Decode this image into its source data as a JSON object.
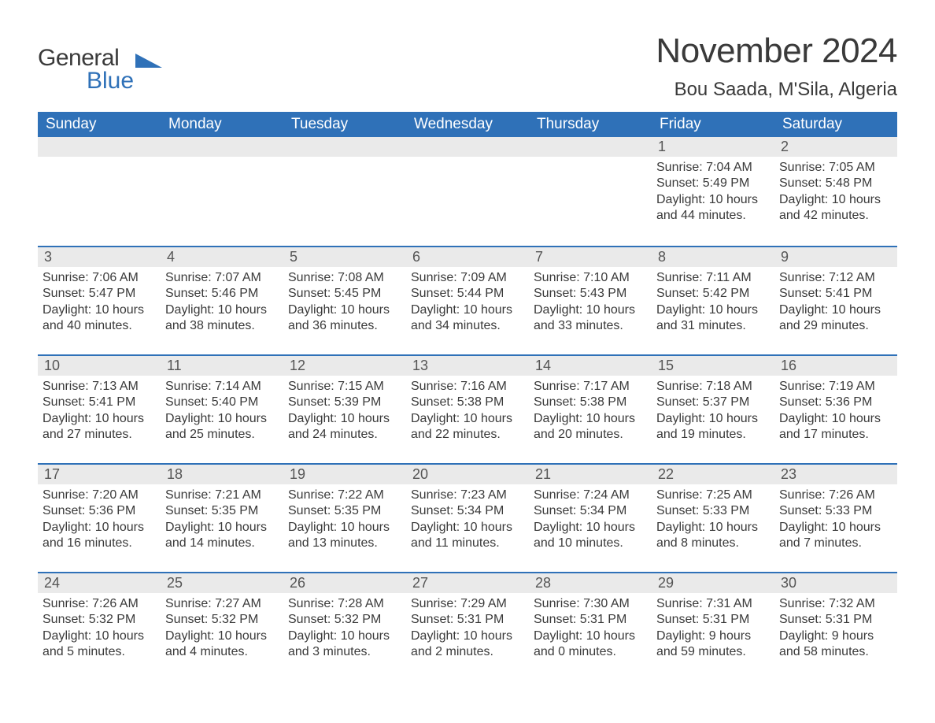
{
  "brand": {
    "word1": "General",
    "word2": "Blue",
    "accent_color": "#2f71b8"
  },
  "header": {
    "month_title": "November 2024",
    "location": "Bou Saada, M'Sila, Algeria"
  },
  "styling": {
    "header_bg": "#2f71b8",
    "header_text": "#ffffff",
    "daynum_bg": "#eaeaea",
    "week_rule_color": "#2f71b8",
    "body_text_color": "#3a3a3a",
    "page_bg": "#ffffff",
    "month_title_fontsize": 44,
    "location_fontsize": 24,
    "weekday_fontsize": 19,
    "daynum_fontsize": 18,
    "body_fontsize": 16
  },
  "calendar": {
    "weekdays": [
      "Sunday",
      "Monday",
      "Tuesday",
      "Wednesday",
      "Thursday",
      "Friday",
      "Saturday"
    ],
    "weeks": [
      [
        {
          "n": null
        },
        {
          "n": null
        },
        {
          "n": null
        },
        {
          "n": null
        },
        {
          "n": null
        },
        {
          "n": "1",
          "sunrise": "Sunrise: 7:04 AM",
          "sunset": "Sunset: 5:49 PM",
          "daylight": "Daylight: 10 hours and 44 minutes."
        },
        {
          "n": "2",
          "sunrise": "Sunrise: 7:05 AM",
          "sunset": "Sunset: 5:48 PM",
          "daylight": "Daylight: 10 hours and 42 minutes."
        }
      ],
      [
        {
          "n": "3",
          "sunrise": "Sunrise: 7:06 AM",
          "sunset": "Sunset: 5:47 PM",
          "daylight": "Daylight: 10 hours and 40 minutes."
        },
        {
          "n": "4",
          "sunrise": "Sunrise: 7:07 AM",
          "sunset": "Sunset: 5:46 PM",
          "daylight": "Daylight: 10 hours and 38 minutes."
        },
        {
          "n": "5",
          "sunrise": "Sunrise: 7:08 AM",
          "sunset": "Sunset: 5:45 PM",
          "daylight": "Daylight: 10 hours and 36 minutes."
        },
        {
          "n": "6",
          "sunrise": "Sunrise: 7:09 AM",
          "sunset": "Sunset: 5:44 PM",
          "daylight": "Daylight: 10 hours and 34 minutes."
        },
        {
          "n": "7",
          "sunrise": "Sunrise: 7:10 AM",
          "sunset": "Sunset: 5:43 PM",
          "daylight": "Daylight: 10 hours and 33 minutes."
        },
        {
          "n": "8",
          "sunrise": "Sunrise: 7:11 AM",
          "sunset": "Sunset: 5:42 PM",
          "daylight": "Daylight: 10 hours and 31 minutes."
        },
        {
          "n": "9",
          "sunrise": "Sunrise: 7:12 AM",
          "sunset": "Sunset: 5:41 PM",
          "daylight": "Daylight: 10 hours and 29 minutes."
        }
      ],
      [
        {
          "n": "10",
          "sunrise": "Sunrise: 7:13 AM",
          "sunset": "Sunset: 5:41 PM",
          "daylight": "Daylight: 10 hours and 27 minutes."
        },
        {
          "n": "11",
          "sunrise": "Sunrise: 7:14 AM",
          "sunset": "Sunset: 5:40 PM",
          "daylight": "Daylight: 10 hours and 25 minutes."
        },
        {
          "n": "12",
          "sunrise": "Sunrise: 7:15 AM",
          "sunset": "Sunset: 5:39 PM",
          "daylight": "Daylight: 10 hours and 24 minutes."
        },
        {
          "n": "13",
          "sunrise": "Sunrise: 7:16 AM",
          "sunset": "Sunset: 5:38 PM",
          "daylight": "Daylight: 10 hours and 22 minutes."
        },
        {
          "n": "14",
          "sunrise": "Sunrise: 7:17 AM",
          "sunset": "Sunset: 5:38 PM",
          "daylight": "Daylight: 10 hours and 20 minutes."
        },
        {
          "n": "15",
          "sunrise": "Sunrise: 7:18 AM",
          "sunset": "Sunset: 5:37 PM",
          "daylight": "Daylight: 10 hours and 19 minutes."
        },
        {
          "n": "16",
          "sunrise": "Sunrise: 7:19 AM",
          "sunset": "Sunset: 5:36 PM",
          "daylight": "Daylight: 10 hours and 17 minutes."
        }
      ],
      [
        {
          "n": "17",
          "sunrise": "Sunrise: 7:20 AM",
          "sunset": "Sunset: 5:36 PM",
          "daylight": "Daylight: 10 hours and 16 minutes."
        },
        {
          "n": "18",
          "sunrise": "Sunrise: 7:21 AM",
          "sunset": "Sunset: 5:35 PM",
          "daylight": "Daylight: 10 hours and 14 minutes."
        },
        {
          "n": "19",
          "sunrise": "Sunrise: 7:22 AM",
          "sunset": "Sunset: 5:35 PM",
          "daylight": "Daylight: 10 hours and 13 minutes."
        },
        {
          "n": "20",
          "sunrise": "Sunrise: 7:23 AM",
          "sunset": "Sunset: 5:34 PM",
          "daylight": "Daylight: 10 hours and 11 minutes."
        },
        {
          "n": "21",
          "sunrise": "Sunrise: 7:24 AM",
          "sunset": "Sunset: 5:34 PM",
          "daylight": "Daylight: 10 hours and 10 minutes."
        },
        {
          "n": "22",
          "sunrise": "Sunrise: 7:25 AM",
          "sunset": "Sunset: 5:33 PM",
          "daylight": "Daylight: 10 hours and 8 minutes."
        },
        {
          "n": "23",
          "sunrise": "Sunrise: 7:26 AM",
          "sunset": "Sunset: 5:33 PM",
          "daylight": "Daylight: 10 hours and 7 minutes."
        }
      ],
      [
        {
          "n": "24",
          "sunrise": "Sunrise: 7:26 AM",
          "sunset": "Sunset: 5:32 PM",
          "daylight": "Daylight: 10 hours and 5 minutes."
        },
        {
          "n": "25",
          "sunrise": "Sunrise: 7:27 AM",
          "sunset": "Sunset: 5:32 PM",
          "daylight": "Daylight: 10 hours and 4 minutes."
        },
        {
          "n": "26",
          "sunrise": "Sunrise: 7:28 AM",
          "sunset": "Sunset: 5:32 PM",
          "daylight": "Daylight: 10 hours and 3 minutes."
        },
        {
          "n": "27",
          "sunrise": "Sunrise: 7:29 AM",
          "sunset": "Sunset: 5:31 PM",
          "daylight": "Daylight: 10 hours and 2 minutes."
        },
        {
          "n": "28",
          "sunrise": "Sunrise: 7:30 AM",
          "sunset": "Sunset: 5:31 PM",
          "daylight": "Daylight: 10 hours and 0 minutes."
        },
        {
          "n": "29",
          "sunrise": "Sunrise: 7:31 AM",
          "sunset": "Sunset: 5:31 PM",
          "daylight": "Daylight: 9 hours and 59 minutes."
        },
        {
          "n": "30",
          "sunrise": "Sunrise: 7:32 AM",
          "sunset": "Sunset: 5:31 PM",
          "daylight": "Daylight: 9 hours and 58 minutes."
        }
      ]
    ]
  }
}
